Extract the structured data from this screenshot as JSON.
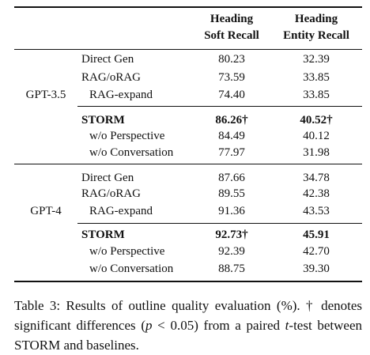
{
  "table": {
    "header": [
      [
        "Heading",
        "Soft Recall"
      ],
      [
        "Heading",
        "Entity Recall"
      ]
    ],
    "groups": [
      {
        "model": "GPT-3.5",
        "rows": [
          [
            "Direct Gen",
            "80.23",
            "32.39"
          ],
          [
            "RAG/oRAG",
            "73.59",
            "33.85"
          ],
          [
            "RAG-expand",
            "74.40",
            "33.85"
          ],
          [
            "STORM",
            "86.26†",
            "40.52†"
          ],
          [
            "w/o Perspective",
            "84.49",
            "40.12"
          ],
          [
            "w/o Conversation",
            "77.97",
            "31.98"
          ]
        ]
      },
      {
        "model": "GPT-4",
        "rows": [
          [
            "Direct Gen",
            "87.66",
            "34.78"
          ],
          [
            "RAG/oRAG",
            "89.55",
            "42.38"
          ],
          [
            "RAG-expand",
            "91.36",
            "43.53"
          ],
          [
            "STORM",
            "92.73†",
            "45.91"
          ],
          [
            "w/o Perspective",
            "92.39",
            "42.70"
          ],
          [
            "w/o Conversation",
            "88.75",
            "39.30"
          ]
        ]
      }
    ]
  },
  "caption": [
    "Table 3: Results of outline quality evaluation (%). † denotes significant differences (",
    "p",
    " < 0.05) from a paired ",
    "t",
    "-test between STORM and baselines."
  ]
}
